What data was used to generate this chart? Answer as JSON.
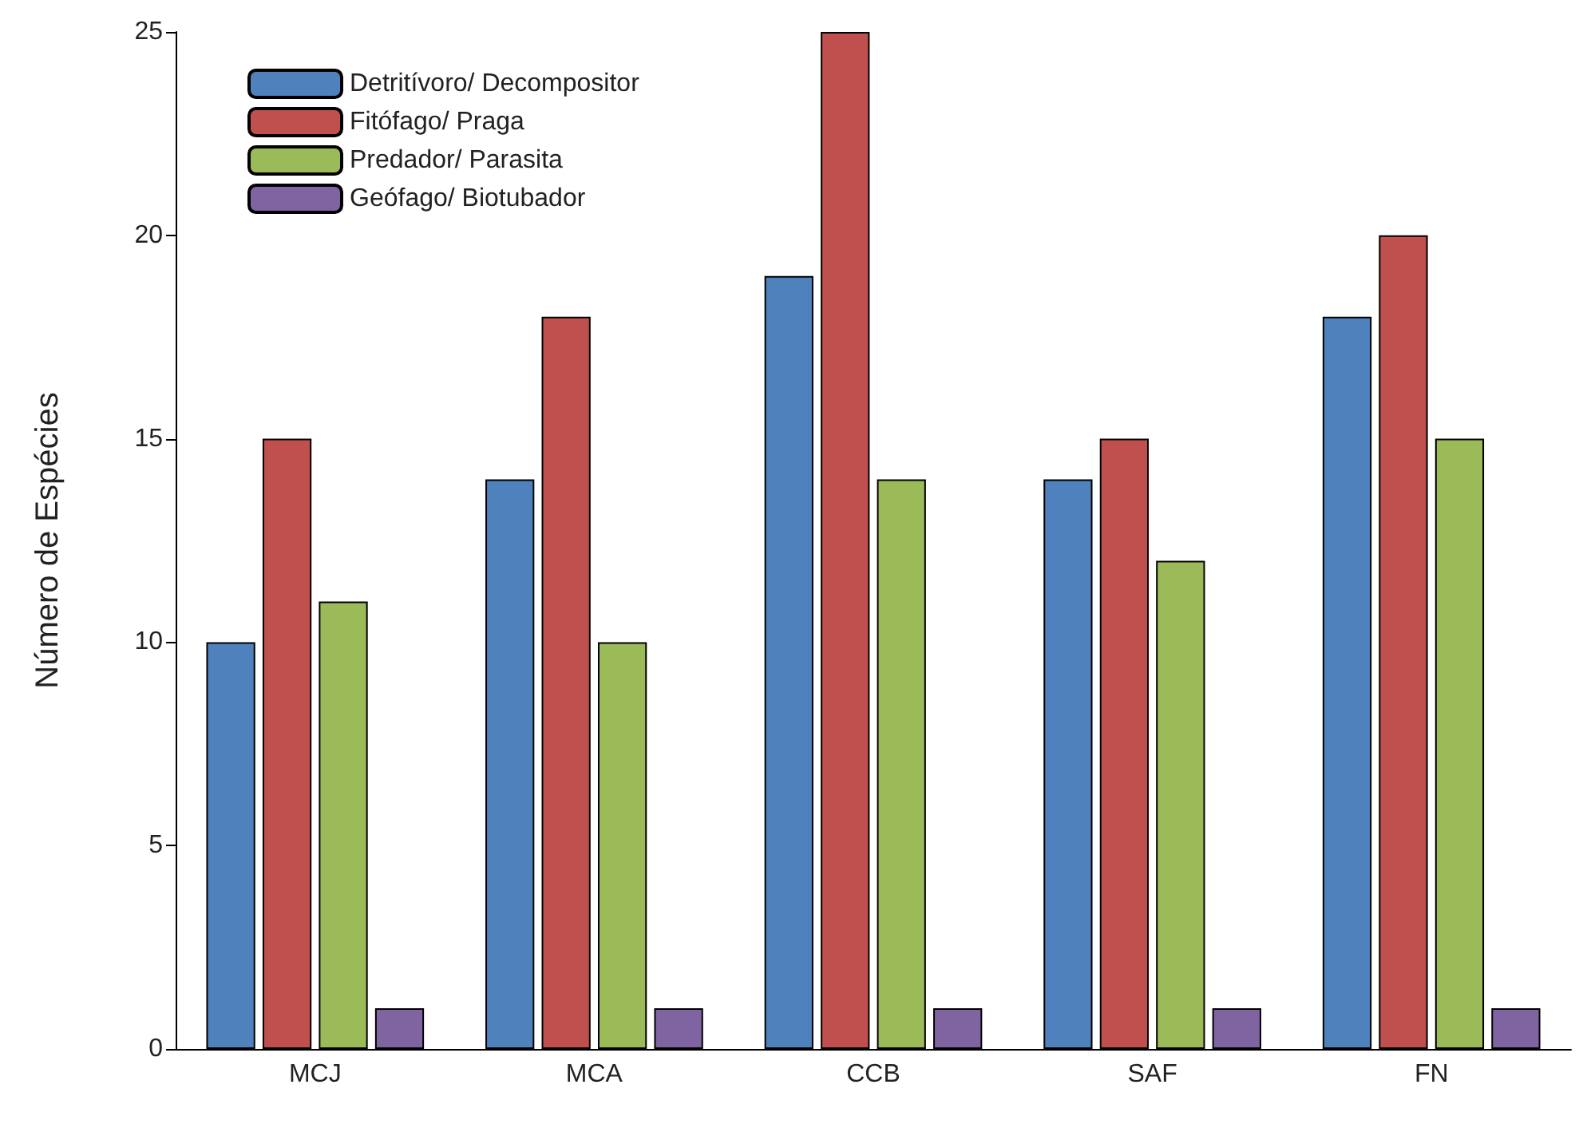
{
  "chart_data": {
    "type": "bar",
    "ylabel": "Número de Espécies",
    "categories": [
      "MCJ",
      "MCA",
      "CCB",
      "SAF",
      "FN"
    ],
    "series": [
      {
        "name": "Detritívoro/ Decompositor",
        "color": "#4f81bd",
        "values": [
          10,
          14,
          19,
          14,
          18
        ]
      },
      {
        "name": "Fitófago/ Praga",
        "color": "#c0504d",
        "values": [
          15,
          18,
          25,
          15,
          20
        ]
      },
      {
        "name": "Predador/ Parasita",
        "color": "#9bbb59",
        "values": [
          11,
          10,
          14,
          12,
          15
        ]
      },
      {
        "name": "Geófago/ Biotubador",
        "color": "#8064a2",
        "values": [
          1,
          1,
          1,
          1,
          1
        ]
      }
    ],
    "ylim": [
      0,
      25
    ],
    "yticks": [
      0,
      5,
      10,
      15,
      20,
      25
    ],
    "grid": false,
    "legend": "top left"
  }
}
